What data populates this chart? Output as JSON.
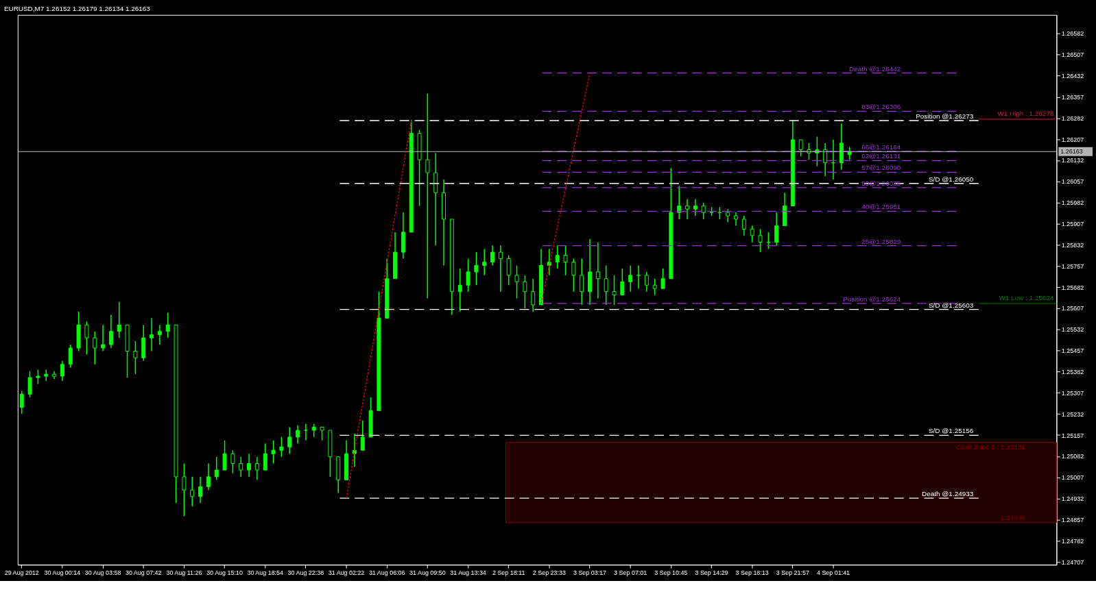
{
  "chart_data": {
    "type": "candlestick",
    "title": "EURUSD,M7  1.26152 1.26179 1.26134 1.26163",
    "color": "#00ff00",
    "categories": [
      "29 Aug 2012",
      null,
      null,
      null,
      null,
      "30 Aug 00:14",
      null,
      null,
      null,
      null,
      "30 Aug 03:58",
      null,
      null,
      null,
      null,
      "30 Aug 07:42",
      null,
      null,
      null,
      null,
      "30 Aug 11:26",
      null,
      null,
      null,
      null,
      "30 Aug 15:10",
      null,
      null,
      null,
      null,
      "30 Aug 18:54",
      null,
      null,
      null,
      null,
      "30 Aug 22:38",
      null,
      null,
      null,
      null,
      "31 Aug 02:22",
      null,
      null,
      null,
      null,
      "31 Aug 06:06",
      null,
      null,
      null,
      null,
      "31 Aug 09:50",
      null,
      null,
      null,
      null,
      "31 Aug 13:34",
      null,
      null,
      null,
      null,
      "2 Sep 18:11",
      null,
      null,
      null,
      null,
      "2 Sep 23:33",
      null,
      null,
      null,
      null,
      "3 Sep 03:17",
      null,
      null,
      null,
      null,
      "3 Sep 07:01",
      null,
      null,
      null,
      null,
      "3 Sep 10:45",
      null,
      null,
      null,
      null,
      "3 Sep 14:29",
      null,
      null,
      null,
      null,
      "3 Sep 18:13",
      null,
      null,
      null,
      null,
      "3 Sep 21:57",
      null,
      null,
      null,
      null,
      "4 Sep 01:41",
      null,
      null,
      null,
      null,
      null,
      null,
      null,
      null,
      null,
      null,
      null,
      null,
      null,
      null,
      null,
      null,
      null,
      null,
      null,
      null,
      null,
      null,
      null,
      null,
      null,
      null,
      null
    ],
    "ohlc": [
      [
        1.25255,
        1.25314,
        1.25232,
        1.25302
      ],
      [
        1.25302,
        1.25384,
        1.25291,
        1.25361
      ],
      [
        1.25361,
        1.25389,
        1.25338,
        1.25366
      ],
      [
        1.25366,
        1.25389,
        1.25349,
        1.25373
      ],
      [
        1.25373,
        1.25384,
        1.25356,
        1.25366
      ],
      [
        1.25366,
        1.2542,
        1.25349,
        1.25408
      ],
      [
        1.25408,
        1.25478,
        1.25396,
        1.25466
      ],
      [
        1.25466,
        1.25595,
        1.25455,
        1.25548
      ],
      [
        1.25548,
        1.2556,
        1.25443,
        1.25502
      ],
      [
        1.25502,
        1.25525,
        1.25408,
        1.25466
      ],
      [
        1.25466,
        1.25548,
        1.25455,
        1.25478
      ],
      [
        1.25478,
        1.25584,
        1.25466,
        1.25525
      ],
      [
        1.25525,
        1.2563,
        1.25502,
        1.25548
      ],
      [
        1.25548,
        1.25548,
        1.25361,
        1.25455
      ],
      [
        1.25455,
        1.2549,
        1.25373,
        1.25431
      ],
      [
        1.25431,
        1.25548,
        1.2542,
        1.25502
      ],
      [
        1.25502,
        1.25572,
        1.25455,
        1.25513
      ],
      [
        1.25513,
        1.25548,
        1.25478,
        1.25525
      ],
      [
        1.25525,
        1.25591,
        1.25502,
        1.25548
      ],
      [
        1.25548,
        1.25548,
        1.24916,
        1.25009
      ],
      [
        1.25009,
        1.25056,
        1.24869,
        1.24962
      ],
      [
        1.24962,
        1.25009,
        1.24904,
        1.24939
      ],
      [
        1.24939,
        1.25009,
        1.24916,
        1.24974
      ],
      [
        1.24974,
        1.25056,
        1.24962,
        1.25009
      ],
      [
        1.25009,
        1.2508,
        1.24998,
        1.25033
      ],
      [
        1.25033,
        1.25138,
        1.25033,
        1.25091
      ],
      [
        1.25091,
        1.25103,
        1.25021,
        1.25056
      ],
      [
        1.25056,
        1.2508,
        1.25009,
        1.25033
      ],
      [
        1.25033,
        1.25091,
        1.25009,
        1.25056
      ],
      [
        1.25056,
        1.2508,
        1.24998,
        1.25033
      ],
      [
        1.25033,
        1.25127,
        1.25033,
        1.25091
      ],
      [
        1.25091,
        1.25138,
        1.25056,
        1.25103
      ],
      [
        1.25103,
        1.2515,
        1.2508,
        1.25115
      ],
      [
        1.25115,
        1.25185,
        1.25091,
        1.2515
      ],
      [
        1.2515,
        1.25192,
        1.25127,
        1.25174
      ],
      [
        1.25174,
        1.25197,
        1.25138,
        1.25174
      ],
      [
        1.25174,
        1.25197,
        1.2515,
        1.25185
      ],
      [
        1.25185,
        1.25185,
        1.25138,
        1.25174
      ],
      [
        1.25174,
        1.25174,
        1.25009,
        1.2508
      ],
      [
        1.2508,
        1.2508,
        1.24951,
        1.24998
      ],
      [
        1.24998,
        1.25138,
        1.24998,
        1.25091
      ],
      [
        1.25091,
        1.25162,
        1.25044,
        1.25103
      ],
      [
        1.25103,
        1.25209,
        1.25103,
        1.2515
      ],
      [
        1.2515,
        1.25291,
        1.2515,
        1.25244
      ],
      [
        1.25244,
        1.25666,
        1.25244,
        1.25572
      ],
      [
        1.25572,
        1.25783,
        1.25572,
        1.25712
      ],
      [
        1.25712,
        1.25877,
        1.25712,
        1.25806
      ],
      [
        1.25806,
        1.25947,
        1.25783,
        1.25877
      ],
      [
        1.25877,
        1.26275,
        1.25877,
        1.26228
      ],
      [
        1.26228,
        1.2624,
        1.2597,
        1.26134
      ],
      [
        1.26134,
        1.26369,
        1.25642,
        1.26088
      ],
      [
        1.26088,
        1.26158,
        1.2583,
        1.26017
      ],
      [
        1.26017,
        1.26064,
        1.25759,
        1.25923
      ],
      [
        1.25923,
        1.25923,
        1.25584,
        1.25666
      ],
      [
        1.25666,
        1.25748,
        1.25595,
        1.25689
      ],
      [
        1.25689,
        1.25783,
        1.25666,
        1.25736
      ],
      [
        1.25736,
        1.25806,
        1.25689,
        1.25759
      ],
      [
        1.25759,
        1.25818,
        1.25724,
        1.25771
      ],
      [
        1.25771,
        1.2583,
        1.25759,
        1.25806
      ],
      [
        1.25806,
        1.2583,
        1.25666,
        1.25783
      ],
      [
        1.25783,
        1.25795,
        1.25689,
        1.25724
      ],
      [
        1.25724,
        1.25759,
        1.25642,
        1.25701
      ],
      [
        1.25701,
        1.25724,
        1.25607,
        1.25666
      ],
      [
        1.25666,
        1.25712,
        1.25595,
        1.25619
      ],
      [
        1.25619,
        1.25818,
        1.25619,
        1.25759
      ],
      [
        1.25759,
        1.25818,
        1.25724,
        1.25771
      ],
      [
        1.25771,
        1.2583,
        1.25748,
        1.25795
      ],
      [
        1.25795,
        1.2583,
        1.25724,
        1.25771
      ],
      [
        1.25771,
        1.25783,
        1.25666,
        1.25724
      ],
      [
        1.25724,
        1.25783,
        1.25619,
        1.25666
      ],
      [
        1.25666,
        1.25853,
        1.25619,
        1.25736
      ],
      [
        1.25736,
        1.25841,
        1.25642,
        1.25712
      ],
      [
        1.25712,
        1.25759,
        1.25619,
        1.25666
      ],
      [
        1.25666,
        1.25724,
        1.25619,
        1.25654
      ],
      [
        1.25654,
        1.25748,
        1.25654,
        1.25701
      ],
      [
        1.25701,
        1.25759,
        1.25666,
        1.25724
      ],
      [
        1.25724,
        1.25759,
        1.25677,
        1.25724
      ],
      [
        1.25724,
        1.25736,
        1.25666,
        1.25689
      ],
      [
        1.25689,
        1.25712,
        1.25654,
        1.25677
      ],
      [
        1.25677,
        1.25748,
        1.25677,
        1.25712
      ],
      [
        1.25712,
        1.26104,
        1.25712,
        1.25947
      ],
      [
        1.25947,
        1.26041,
        1.25923,
        1.2597
      ],
      [
        1.2597,
        1.25994,
        1.25923,
        1.25959
      ],
      [
        1.25959,
        1.25994,
        1.25935,
        1.2597
      ],
      [
        1.2597,
        1.25982,
        1.25923,
        1.25947
      ],
      [
        1.25947,
        1.25966,
        1.25935,
        1.25947
      ],
      [
        1.25947,
        1.25966,
        1.25923,
        1.25947
      ],
      [
        1.25947,
        1.25959,
        1.25912,
        1.25935
      ],
      [
        1.25935,
        1.25947,
        1.259,
        1.25923
      ],
      [
        1.25923,
        1.25935,
        1.25865,
        1.25888
      ],
      [
        1.25888,
        1.259,
        1.25841,
        1.25865
      ],
      [
        1.25865,
        1.25888,
        1.25806,
        1.25841
      ],
      [
        1.25841,
        1.25877,
        1.25818,
        1.25841
      ],
      [
        1.25841,
        1.25947,
        1.2583,
        1.259
      ],
      [
        1.259,
        1.26017,
        1.259,
        1.2597
      ],
      [
        1.2597,
        1.26275,
        1.2597,
        1.26205
      ],
      [
        1.26205,
        1.26205,
        1.26146,
        1.2617
      ],
      [
        1.2617,
        1.26193,
        1.26134,
        1.26158
      ],
      [
        1.26158,
        1.26216,
        1.26111,
        1.2617
      ],
      [
        1.2617,
        1.26193,
        1.26076,
        1.26123
      ],
      [
        1.26123,
        1.26205,
        1.26064,
        1.26123
      ],
      [
        1.26123,
        1.26263,
        1.26099,
        1.26193
      ],
      [
        1.26152,
        1.26179,
        1.26134,
        1.26163
      ],
      null,
      null,
      null,
      null,
      null,
      null,
      null,
      null,
      null,
      null,
      null,
      null,
      null,
      null,
      null,
      null,
      null,
      null,
      null,
      null,
      null,
      null,
      null,
      null,
      null
    ],
    "series": [
      {
        "type": "line",
        "color": "#ff0000",
        "line_style": "dotted",
        "values": [
          null,
          null,
          null,
          null,
          null,
          null,
          null,
          null,
          null,
          null,
          null,
          null,
          null,
          null,
          null,
          null,
          null,
          null,
          null,
          null,
          null,
          null,
          null,
          null,
          null,
          null,
          null,
          null,
          null,
          null,
          null,
          null,
          null,
          null,
          null,
          null,
          null,
          null,
          null,
          null,
          1.24933,
          null,
          null,
          null,
          null,
          null,
          null,
          null,
          1.26273,
          null,
          null,
          null,
          null,
          null,
          null,
          null,
          null,
          null,
          null,
          null,
          null,
          null,
          null,
          null,
          null,
          null,
          null,
          null,
          null,
          null,
          null,
          null,
          null,
          null,
          null,
          null,
          null,
          null,
          null,
          null,
          null,
          null,
          null,
          null,
          null,
          null,
          null,
          null,
          null,
          null,
          null,
          null,
          null,
          null,
          null,
          null,
          null,
          null,
          null,
          null,
          null,
          null,
          null,
          null,
          null,
          null,
          null,
          null,
          null,
          null,
          null,
          null,
          null,
          null,
          null,
          null,
          null,
          null,
          null,
          null,
          null,
          null,
          null,
          null,
          null,
          null,
          null,
          null
        ]
      },
      {
        "type": "line",
        "color": "#ff0000",
        "line_style": "dotted",
        "values": [
          null,
          null,
          null,
          null,
          null,
          null,
          null,
          null,
          null,
          null,
          null,
          null,
          null,
          null,
          null,
          null,
          null,
          null,
          null,
          null,
          null,
          null,
          null,
          null,
          null,
          null,
          null,
          null,
          null,
          null,
          null,
          null,
          null,
          null,
          null,
          null,
          null,
          null,
          null,
          null,
          null,
          null,
          null,
          null,
          null,
          null,
          null,
          null,
          null,
          null,
          null,
          null,
          null,
          null,
          null,
          null,
          null,
          null,
          null,
          null,
          null,
          null,
          null,
          null,
          1.25624,
          null,
          null,
          null,
          null,
          null,
          1.26442,
          null,
          null,
          null,
          null,
          null,
          null,
          null,
          null,
          null,
          null,
          null,
          null,
          null,
          null,
          null,
          null,
          null,
          null,
          null,
          null,
          null,
          null,
          null,
          null,
          null,
          null,
          null,
          null,
          null,
          null,
          null,
          null,
          null,
          null,
          null,
          null,
          null,
          null,
          null,
          null,
          null,
          null,
          null,
          null,
          null,
          null,
          null,
          null,
          null,
          null,
          null,
          null,
          null,
          null,
          null,
          null,
          null
        ]
      }
    ],
    "ylim": [
      1.24697,
      1.26648
    ],
    "yticks": [
      1.24707,
      1.24782,
      1.24857,
      1.24932,
      1.25007,
      1.25082,
      1.25157,
      1.25232,
      1.25307,
      1.25382,
      1.25457,
      1.25532,
      1.25607,
      1.25682,
      1.25757,
      1.25832,
      1.25907,
      1.25982,
      1.26057,
      1.26132,
      1.26207,
      1.26282,
      1.26357,
      1.26432,
      1.26507,
      1.26582
    ],
    "ref_lines": [
      {
        "axis": "y",
        "value": 1.26442,
        "label": "Death @1.26442",
        "color": "#9932cc",
        "line_style": "dashed"
      },
      {
        "axis": "y",
        "value": 1.26306,
        "label": "83@1.26306",
        "color": "#9932cc",
        "line_style": "dashed"
      },
      {
        "axis": "y",
        "value": 1.26273,
        "label": "Position @1.26273",
        "color": "#ffffff",
        "line_style": "dashed"
      },
      {
        "axis": "y",
        "value": 1.26278,
        "label": "W1 High : 1.26278",
        "color": "#dc143c",
        "line_style": "solid"
      },
      {
        "axis": "y",
        "value": 1.26164,
        "label": "66@1.26164",
        "color": "#9932cc",
        "line_style": "dashed"
      },
      {
        "axis": "y",
        "value": 1.26163,
        "label": "1.26163",
        "color": "#c0c0c0",
        "line_style": "solid"
      },
      {
        "axis": "y",
        "value": 1.26131,
        "label": "62@1.26131",
        "color": "#9932cc",
        "line_style": "dashed"
      },
      {
        "axis": "y",
        "value": 1.2609,
        "label": "57@1.26090",
        "color": "#9932cc",
        "line_style": "dashed"
      },
      {
        "axis": "y",
        "value": 1.2605,
        "label": "S/D @1.26050",
        "color": "#ffffff",
        "line_style": "dashed"
      },
      {
        "axis": "y",
        "value": 1.26035,
        "label": "50@1.26035",
        "color": "#9932cc",
        "line_style": "dashed"
      },
      {
        "axis": "y",
        "value": 1.25951,
        "label": "40@1.25951",
        "color": "#9932cc",
        "line_style": "dashed"
      },
      {
        "axis": "y",
        "value": 1.25829,
        "label": "25@1.25829",
        "color": "#9932cc",
        "line_style": "dashed"
      },
      {
        "axis": "y",
        "value": 1.25624,
        "label": "Position @1.25624",
        "color": "#9932cc",
        "line_style": "dashed"
      },
      {
        "axis": "y",
        "value": 1.25624,
        "label": "W1 Low : 1.25624",
        "color": "#008000",
        "line_style": "solid"
      },
      {
        "axis": "y",
        "value": 1.25603,
        "label": "S/D @1.25603",
        "color": "#ffffff",
        "line_style": "dashed"
      },
      {
        "axis": "y",
        "value": 1.25156,
        "label": "S/D @1.25156",
        "color": "#ffffff",
        "line_style": "dashed"
      },
      {
        "axis": "y",
        "value": 1.24933,
        "label": "Death @1.24933",
        "color": "#ffffff",
        "line_style": "dashed"
      }
    ],
    "bands": [
      {
        "axis": "y",
        "from": 1.24846,
        "to": 1.25131,
        "label": "Cash Zone 1 : 1.25131",
        "color": "#220000"
      }
    ],
    "annotations": [
      {
        "text": "1.24846",
        "y": 1.24846
      }
    ]
  }
}
